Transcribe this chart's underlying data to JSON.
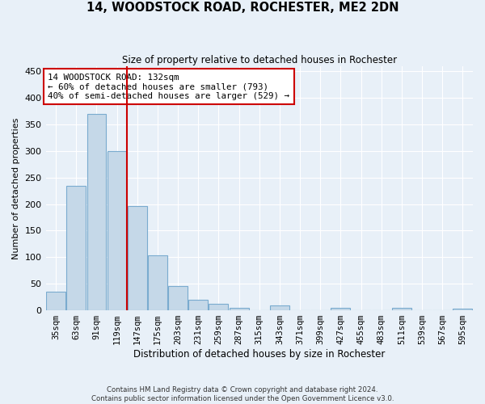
{
  "title": "14, WOODSTOCK ROAD, ROCHESTER, ME2 2DN",
  "subtitle": "Size of property relative to detached houses in Rochester",
  "xlabel": "Distribution of detached houses by size in Rochester",
  "ylabel": "Number of detached properties",
  "bar_labels": [
    "35sqm",
    "63sqm",
    "91sqm",
    "119sqm",
    "147sqm",
    "175sqm",
    "203sqm",
    "231sqm",
    "259sqm",
    "287sqm",
    "315sqm",
    "343sqm",
    "371sqm",
    "399sqm",
    "427sqm",
    "455sqm",
    "483sqm",
    "511sqm",
    "539sqm",
    "567sqm",
    "595sqm"
  ],
  "bar_values": [
    35,
    235,
    370,
    300,
    197,
    103,
    46,
    20,
    12,
    5,
    0,
    10,
    0,
    0,
    4,
    0,
    0,
    4,
    0,
    0,
    3
  ],
  "bar_color": "#c5d8e8",
  "bar_edge_color": "#7aabcf",
  "background_color": "#e8f0f8",
  "grid_color": "#ffffff",
  "red_line_color": "#cc0000",
  "annotation_text": "14 WOODSTOCK ROAD: 132sqm\n← 60% of detached houses are smaller (793)\n40% of semi-detached houses are larger (529) →",
  "annotation_box_color": "#ffffff",
  "annotation_box_edge_color": "#cc0000",
  "footnote1": "Contains HM Land Registry data © Crown copyright and database right 2024.",
  "footnote2": "Contains public sector information licensed under the Open Government Licence v3.0.",
  "ylim": [
    0,
    460
  ],
  "yticks": [
    0,
    50,
    100,
    150,
    200,
    250,
    300,
    350,
    400,
    450
  ]
}
